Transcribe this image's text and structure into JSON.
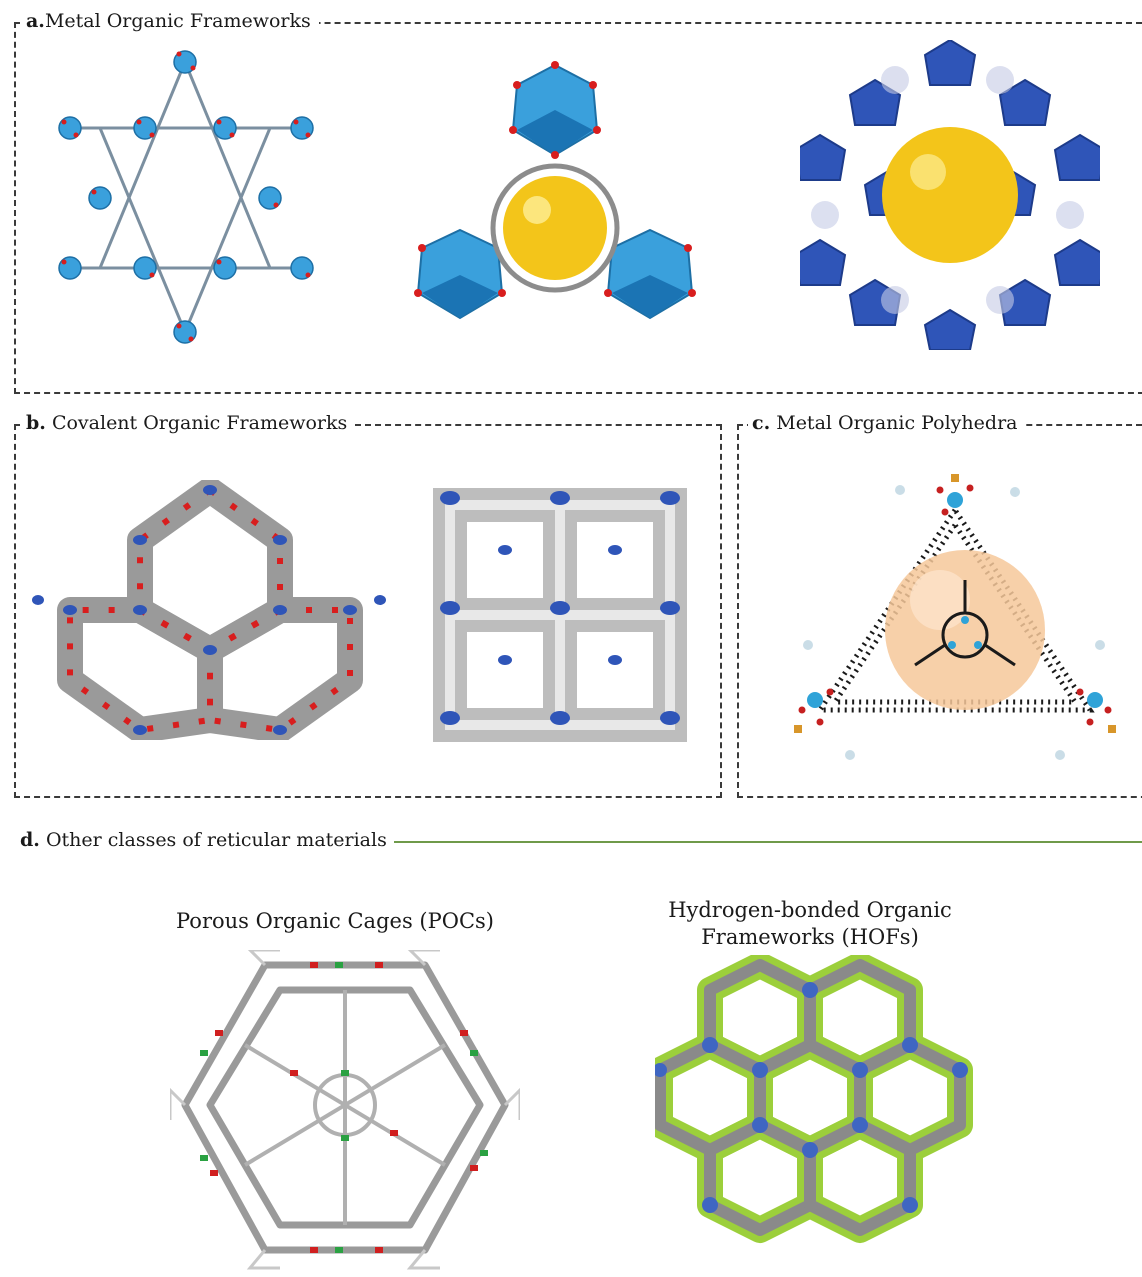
{
  "panels": {
    "a": {
      "letter": "a.",
      "title": "Metal Organic Frameworks"
    },
    "b": {
      "letter": "b.",
      "title": "Covalent Organic Frameworks"
    },
    "c": {
      "letter": "c.",
      "title": "Metal Organic Polyhedra"
    },
    "d": {
      "letter": "d.",
      "title": "Other classes of reticular materials"
    }
  },
  "captions": {
    "poc": "Porous Organic Cages (POCs)",
    "hof_line1": "Hydrogen-bonded Organic",
    "hof_line2": "Frameworks (HOFs)"
  },
  "colors": {
    "cluster_blue": "#3aa0dc",
    "deep_blue": "#2f55b8",
    "pore_yellow": "#f3c51a",
    "oxygen_red": "#d81e1e",
    "carbon_grey": "#8c8c8c",
    "hof_green": "#9ccf3b",
    "rule_green": "#6f9a4a"
  }
}
